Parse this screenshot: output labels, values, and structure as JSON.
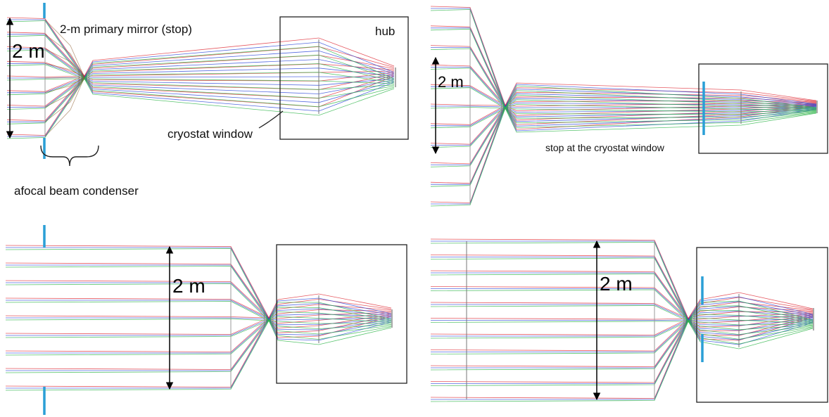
{
  "colors": {
    "stop_marker": "#2a9fd6",
    "ray_red": "#e0303a",
    "ray_green": "#2fb54a",
    "ray_blue": "#2b46d8",
    "ray_gray": "#8a8a8a",
    "ray_brown": "#8b5a2b"
  },
  "panels": [
    {
      "id": "top-left",
      "labels": {
        "dimension": "2 m",
        "primary_mirror": "2-m primary mirror (stop)",
        "hub": "hub",
        "cryostat_window": "cryostat window",
        "beam_condenser": "afocal beam condenser"
      }
    },
    {
      "id": "top-right",
      "labels": {
        "dimension": "2 m",
        "stop_location": "stop at the cryostat window"
      }
    },
    {
      "id": "bottom-left",
      "labels": {
        "dimension": "2 m"
      }
    },
    {
      "id": "bottom-right",
      "labels": {
        "dimension": "2 m"
      }
    }
  ]
}
